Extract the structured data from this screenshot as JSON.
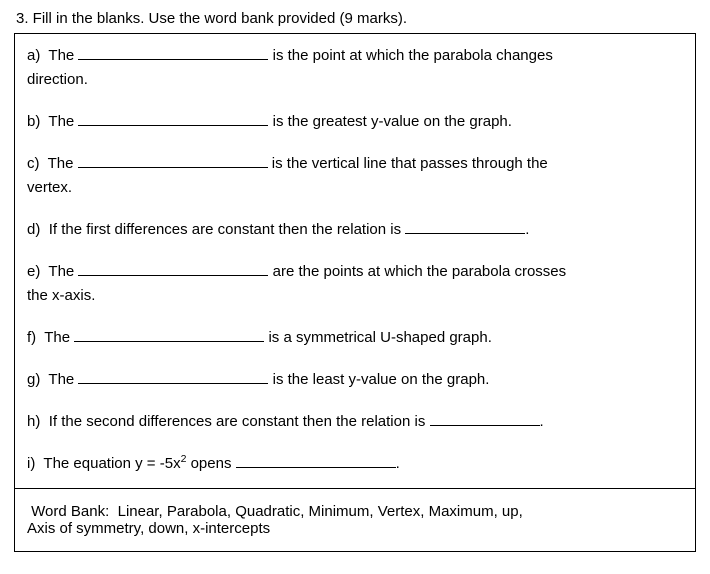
{
  "header": "3.  Fill in the blanks.  Use the word bank provided (9 marks).",
  "questions": {
    "a": {
      "label": "a)",
      "pre": "The",
      "post": "is the point at which the parabola changes",
      "cont": "direction."
    },
    "b": {
      "label": "b)",
      "pre": "The",
      "post": "is the greatest y-value on the graph."
    },
    "c": {
      "label": "c)",
      "pre": "The",
      "post": "is the vertical line that passes through the",
      "cont": "vertex."
    },
    "d": {
      "label": "d)",
      "pre": "If the first differences are constant then the relation is",
      "post": "."
    },
    "e": {
      "label": "e)",
      "pre": "The",
      "post": "are the points at which the parabola crosses",
      "cont": "the x-axis."
    },
    "f": {
      "label": "f)",
      "pre": "The",
      "post": "is a symmetrical U-shaped graph."
    },
    "g": {
      "label": "g)",
      "pre": "The",
      "post": "is the least y-value on the graph."
    },
    "h": {
      "label": "h)",
      "pre": "If the second differences are constant then the relation is",
      "post": "."
    },
    "i": {
      "label": "i)",
      "pre_part1": "The equation y = -5x",
      "exponent": "2",
      "pre_part2": " opens",
      "post": "."
    }
  },
  "wordbank": {
    "label": "Word Bank:",
    "line1": "Linear, Parabola, Quadratic, Minimum, Vertex, Maximum, up,",
    "line2": "Axis of symmetry, down, x-intercepts"
  },
  "style": {
    "font_family": "Comic Sans MS",
    "text_color": "#000000",
    "background_color": "#ffffff",
    "border_color": "#000000"
  }
}
